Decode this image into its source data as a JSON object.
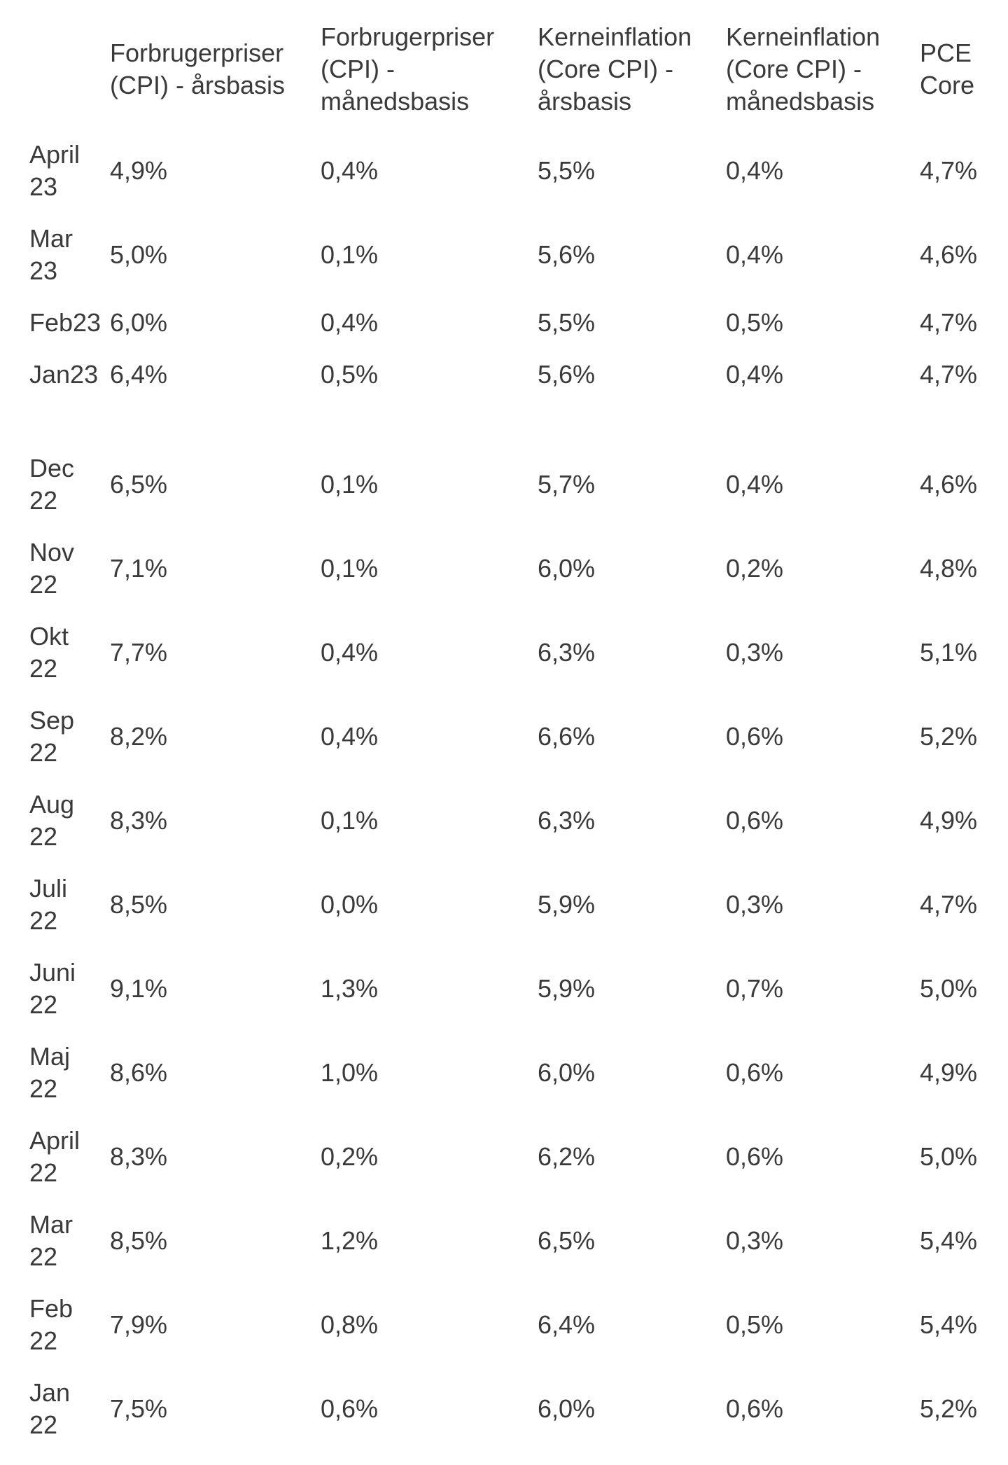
{
  "chart_data": {
    "type": "table",
    "columns": [
      "",
      "Forbrugerpriser\n(CPI) - årsbasis",
      "Forbrugerpriser\n(CPI) -\nmånedsbasis",
      "Kerneinflation\n(Core CPI) -\nårsbasis",
      "Kerneinflation\n(Core CPI) -\nmånedsbasis",
      "PCE\nCore"
    ],
    "rows": [
      {
        "label": "April\n23",
        "values": [
          "4,9%",
          "0,4%",
          "5,5%",
          "0,4%",
          "4,7%"
        ]
      },
      {
        "label": "Mar\n23",
        "values": [
          "5,0%",
          "0,1%",
          "5,6%",
          "0,4%",
          "4,6%"
        ]
      },
      {
        "label": "Feb23",
        "values": [
          "6,0%",
          "0,4%",
          "5,5%",
          "0,5%",
          "4,7%"
        ]
      },
      {
        "label": "Jan23",
        "values": [
          "6,4%",
          "0,5%",
          "5,6%",
          "0,4%",
          "4,7%"
        ]
      },
      {
        "spacer": true
      },
      {
        "label": "Dec\n22",
        "values": [
          "6,5%",
          "0,1%",
          "5,7%",
          "0,4%",
          "4,6%"
        ]
      },
      {
        "label": "Nov\n22",
        "values": [
          "7,1%",
          "0,1%",
          "6,0%",
          "0,2%",
          "4,8%"
        ]
      },
      {
        "label": "Okt\n22",
        "values": [
          "7,7%",
          "0,4%",
          "6,3%",
          "0,3%",
          "5,1%"
        ]
      },
      {
        "label": "Sep\n22",
        "values": [
          "8,2%",
          "0,4%",
          "6,6%",
          "0,6%",
          "5,2%"
        ]
      },
      {
        "label": "Aug\n22",
        "values": [
          "8,3%",
          "0,1%",
          "6,3%",
          "0,6%",
          "4,9%"
        ]
      },
      {
        "label": "Juli\n22",
        "values": [
          "8,5%",
          "0,0%",
          "5,9%",
          "0,3%",
          "4,7%"
        ]
      },
      {
        "label": "Juni\n22",
        "values": [
          "9,1%",
          "1,3%",
          "5,9%",
          "0,7%",
          "5,0%"
        ]
      },
      {
        "label": "Maj\n22",
        "values": [
          "8,6%",
          "1,0%",
          "6,0%",
          "0,6%",
          "4,9%"
        ]
      },
      {
        "label": "April\n22",
        "values": [
          "8,3%",
          "0,2%",
          "6,2%",
          "0,6%",
          "5,0%"
        ]
      },
      {
        "label": "Mar\n22",
        "values": [
          "8,5%",
          "1,2%",
          "6,5%",
          "0,3%",
          "5,4%"
        ]
      },
      {
        "label": "Feb\n22",
        "values": [
          "7,9%",
          "0,8%",
          "6,4%",
          "0,5%",
          "5,4%"
        ]
      },
      {
        "label": "Jan\n22",
        "values": [
          "7,5%",
          "0,6%",
          "6,0%",
          "0,6%",
          "5,2%"
        ]
      }
    ]
  },
  "colors": {
    "text": "#3a3a3a",
    "background": "#ffffff"
  }
}
